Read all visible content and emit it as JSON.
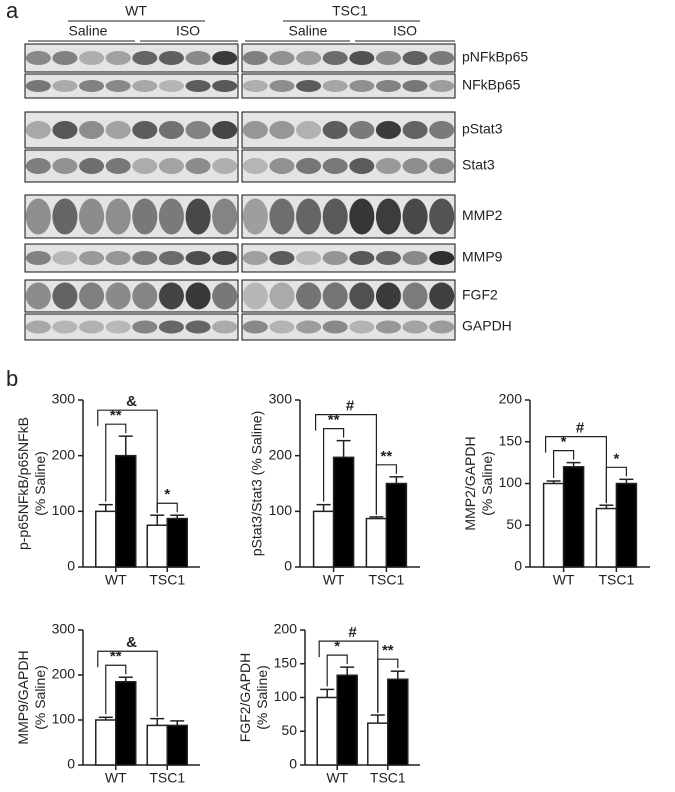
{
  "panels": [
    "a",
    "b"
  ],
  "blot": {
    "groups": [
      "WT",
      "TSC1"
    ],
    "treatments": [
      "Saline",
      "ISO",
      "Saline",
      "ISO"
    ],
    "rows": [
      "pNFkBp65",
      "NFkBp65",
      "pStat3",
      "Stat3",
      "MMP2",
      "MMP9",
      "FGF2",
      "GAPDH"
    ]
  },
  "chart_data": [
    {
      "type": "bar",
      "ylabel": [
        "p-p65NFkB/p65NFkB",
        "(% Saline)"
      ],
      "categories": [
        "WT",
        "TSC1"
      ],
      "series": [
        {
          "color": "#ffffff",
          "values": [
            100,
            75
          ],
          "errors": [
            12,
            18
          ]
        },
        {
          "color": "#000000",
          "values": [
            200,
            87
          ],
          "errors": [
            35,
            6
          ]
        }
      ],
      "ylim": [
        0,
        300
      ],
      "yticks": [
        0,
        100,
        200,
        300
      ],
      "annotations": [
        "**",
        "&",
        "*"
      ]
    },
    {
      "type": "bar",
      "ylabel": [
        "pStat3/Stat3 (% Saline)"
      ],
      "categories": [
        "WT",
        "TSC1"
      ],
      "series": [
        {
          "color": "#ffffff",
          "values": [
            100,
            87
          ],
          "errors": [
            12,
            3
          ]
        },
        {
          "color": "#000000",
          "values": [
            197,
            150
          ],
          "errors": [
            30,
            12
          ]
        }
      ],
      "ylim": [
        0,
        300
      ],
      "yticks": [
        0,
        100,
        200,
        300
      ],
      "annotations": [
        "**",
        "#",
        "**"
      ]
    },
    {
      "type": "bar",
      "ylabel": [
        "MMP2/GAPDH",
        "(% Saline)"
      ],
      "categories": [
        "WT",
        "TSC1"
      ],
      "series": [
        {
          "color": "#ffffff",
          "values": [
            100,
            70
          ],
          "errors": [
            3,
            4
          ]
        },
        {
          "color": "#000000",
          "values": [
            120,
            100
          ],
          "errors": [
            5,
            5
          ]
        }
      ],
      "ylim": [
        0,
        200
      ],
      "yticks": [
        0,
        50,
        100,
        150,
        200
      ],
      "annotations": [
        "*",
        "#",
        "*"
      ]
    },
    {
      "type": "bar",
      "ylabel": [
        "MMP9/GAPDH",
        "(% Saline)"
      ],
      "categories": [
        "WT",
        "TSC1"
      ],
      "series": [
        {
          "color": "#ffffff",
          "values": [
            100,
            88
          ],
          "errors": [
            6,
            15
          ]
        },
        {
          "color": "#000000",
          "values": [
            185,
            88
          ],
          "errors": [
            10,
            10
          ]
        }
      ],
      "ylim": [
        0,
        300
      ],
      "yticks": [
        0,
        100,
        200,
        300
      ],
      "annotations": [
        "**",
        "&"
      ]
    },
    {
      "type": "bar",
      "ylabel": [
        "FGF2/GAPDH",
        "(% Saline)"
      ],
      "categories": [
        "WT",
        "TSC1"
      ],
      "series": [
        {
          "color": "#ffffff",
          "values": [
            100,
            62
          ],
          "errors": [
            12,
            12
          ]
        },
        {
          "color": "#000000",
          "values": [
            133,
            127
          ],
          "errors": [
            12,
            12
          ]
        }
      ],
      "ylim": [
        0,
        200
      ],
      "yticks": [
        0,
        50,
        100,
        150,
        200
      ],
      "annotations": [
        "*",
        "#",
        "**"
      ]
    }
  ]
}
